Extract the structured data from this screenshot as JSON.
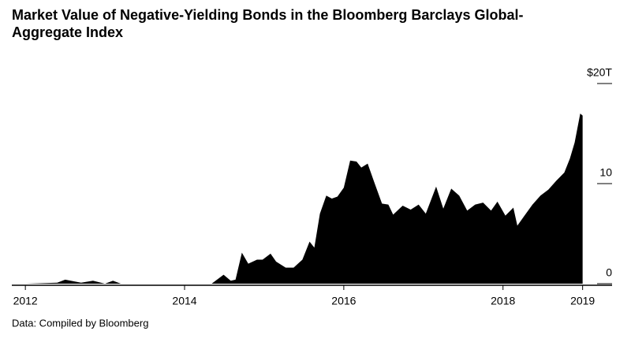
{
  "chart_data": {
    "type": "area",
    "title": "Market Value of Negative-Yielding Bonds in the Bloomberg Barclays Global-Aggregate Index",
    "source": "Data: Compiled by Bloomberg",
    "color": "#000000",
    "x": [
      2012.0,
      2012.4,
      2012.5,
      2012.7,
      2012.85,
      2013.0,
      2013.1,
      2013.2,
      2014.34,
      2014.49,
      2014.58,
      2014.64,
      2014.72,
      2014.8,
      2014.91,
      2014.98,
      2015.08,
      2015.15,
      2015.27,
      2015.37,
      2015.48,
      2015.57,
      2015.63,
      2015.7,
      2015.78,
      2015.85,
      2015.92,
      2016.0,
      2016.08,
      2016.16,
      2016.22,
      2016.3,
      2016.38,
      2016.48,
      2016.56,
      2016.62,
      2016.74,
      2016.84,
      2016.94,
      2017.03,
      2017.16,
      2017.25,
      2017.35,
      2017.45,
      2017.55,
      2017.65,
      2017.75,
      2017.85,
      2017.93,
      2018.03,
      2018.13,
      2018.18,
      2018.27,
      2018.37,
      2018.47,
      2018.57,
      2018.67,
      2018.77,
      2018.84,
      2018.9,
      2018.97,
      2019.0
    ],
    "values": [
      0,
      0.1,
      0.4,
      0.1,
      0.3,
      0,
      0.3,
      0,
      0,
      0.9,
      0.3,
      0.4,
      3.1,
      2.0,
      2.4,
      2.4,
      3.0,
      2.2,
      1.6,
      1.6,
      2.4,
      4.2,
      3.6,
      7.0,
      8.8,
      8.5,
      8.7,
      9.6,
      12.3,
      12.2,
      11.6,
      12.0,
      10.2,
      8.0,
      7.9,
      6.9,
      7.8,
      7.4,
      7.9,
      7.0,
      9.7,
      7.5,
      9.5,
      8.8,
      7.3,
      7.9,
      8.1,
      7.3,
      8.2,
      6.8,
      7.6,
      5.8,
      6.8,
      7.9,
      8.8,
      9.4,
      10.3,
      11.1,
      12.5,
      14.1,
      17.0,
      16.8
    ],
    "xlim": [
      2011.83,
      2019.37
    ],
    "xticks": [
      2012,
      2014,
      2016,
      2018,
      2019
    ],
    "ylim": [
      0,
      20
    ],
    "yticks": [
      0,
      10,
      {
        "value": 20,
        "label": "$20T"
      }
    ]
  }
}
